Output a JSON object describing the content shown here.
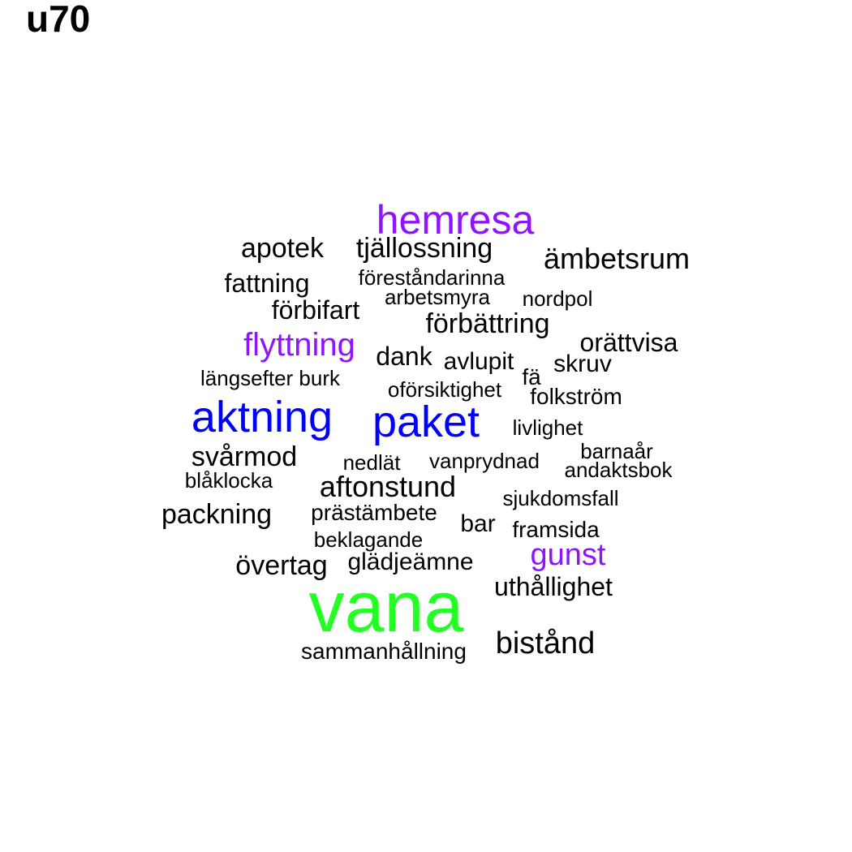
{
  "title": "u70",
  "colors": {
    "black": "#000000",
    "purple": "#9013fe",
    "blue": "#0000ff",
    "green": "#22ff22"
  },
  "words": [
    {
      "text": "vana",
      "color": "green"
    },
    {
      "text": "aktning",
      "color": "blue"
    },
    {
      "text": "paket",
      "color": "blue"
    },
    {
      "text": "hemresa",
      "color": "purple"
    },
    {
      "text": "flyttning",
      "color": "purple"
    },
    {
      "text": "gunst",
      "color": "purple"
    },
    {
      "text": "apotek",
      "color": "black"
    },
    {
      "text": "tjällossning",
      "color": "black"
    },
    {
      "text": "ämbetsrum",
      "color": "black"
    },
    {
      "text": "föreståndarinna",
      "color": "black"
    },
    {
      "text": "fattning",
      "color": "black"
    },
    {
      "text": "arbetsmyra",
      "color": "black"
    },
    {
      "text": "nordpol",
      "color": "black"
    },
    {
      "text": "förbifart",
      "color": "black"
    },
    {
      "text": "förbättring",
      "color": "black"
    },
    {
      "text": "orättvisa",
      "color": "black"
    },
    {
      "text": "dank",
      "color": "black"
    },
    {
      "text": "avlupit",
      "color": "black"
    },
    {
      "text": "skruv",
      "color": "black"
    },
    {
      "text": "fä",
      "color": "black"
    },
    {
      "text": "längsefter",
      "color": "black"
    },
    {
      "text": "burk",
      "color": "black"
    },
    {
      "text": "oförsiktighet",
      "color": "black"
    },
    {
      "text": "folkström",
      "color": "black"
    },
    {
      "text": "livlighet",
      "color": "black"
    },
    {
      "text": "svårmod",
      "color": "black"
    },
    {
      "text": "barnaår",
      "color": "black"
    },
    {
      "text": "nedlät",
      "color": "black"
    },
    {
      "text": "vanprydnad",
      "color": "black"
    },
    {
      "text": "andaktsbok",
      "color": "black"
    },
    {
      "text": "blåklocka",
      "color": "black"
    },
    {
      "text": "aftonstund",
      "color": "black"
    },
    {
      "text": "sjukdomsfall",
      "color": "black"
    },
    {
      "text": "packning",
      "color": "black"
    },
    {
      "text": "prästämbete",
      "color": "black"
    },
    {
      "text": "bar",
      "color": "black"
    },
    {
      "text": "framsida",
      "color": "black"
    },
    {
      "text": "beklagande",
      "color": "black"
    },
    {
      "text": "övertag",
      "color": "black"
    },
    {
      "text": "glädjeämne",
      "color": "black"
    },
    {
      "text": "uthållighet",
      "color": "black"
    },
    {
      "text": "bistånd",
      "color": "black"
    },
    {
      "text": "sammanhållning",
      "color": "black"
    }
  ]
}
